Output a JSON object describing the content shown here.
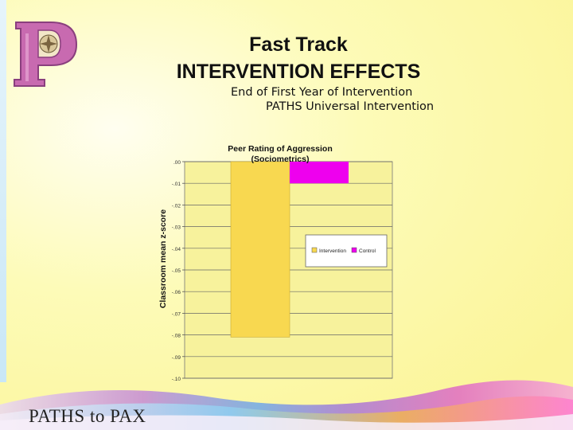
{
  "slide": {
    "title_line1": "Fast Track",
    "title_line2": "INTERVENTION EFFECTS",
    "subtitle_line1": "End of First Year of Intervention",
    "subtitle_line2": "PATHS Universal Intervention",
    "footer_text": "PATHS to PAX",
    "logo_letter": "P"
  },
  "chart_data": {
    "type": "bar",
    "title": "Peer Rating of Aggression (Sociometrics)",
    "title_lines": [
      "Peer Rating of Aggression",
      "(Sociometrics)"
    ],
    "ylabel": "Classroom mean z-score",
    "xlabel": "",
    "ylim": [
      -0.1,
      0.0
    ],
    "yticks": [
      0.0,
      -0.01,
      -0.02,
      -0.03,
      -0.04,
      -0.05,
      -0.06,
      -0.07,
      -0.08,
      -0.09,
      -0.1
    ],
    "ytick_labels": [
      ".00",
      "-.01",
      "-.02",
      "-.03",
      "-.04",
      "-.05",
      "-.06",
      "-.07",
      "-.08",
      "-.09",
      "-.10"
    ],
    "grid": true,
    "legend_position": "right",
    "series": [
      {
        "name": "Intervention",
        "value": -0.081,
        "color": "#f8d850"
      },
      {
        "name": "Control",
        "value": -0.01,
        "color": "#ee00ee"
      }
    ]
  },
  "colors": {
    "background": "#fbf59a",
    "plot_area": "#f7f29c",
    "intervention": "#f8d850",
    "control": "#ee00ee",
    "logo": "#c86ab0"
  }
}
